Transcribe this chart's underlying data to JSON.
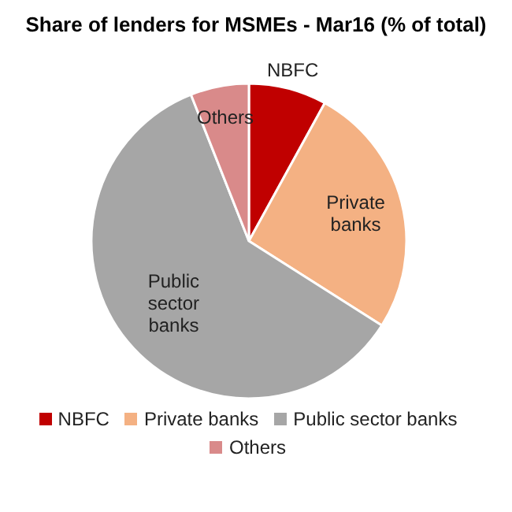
{
  "chart_data": {
    "type": "pie",
    "title": "Share of lenders for MSMEs - Mar16 (% of total)",
    "categories": [
      "NBFC",
      "Private banks",
      "Public sector banks",
      "Others"
    ],
    "values": [
      8,
      26,
      60,
      6
    ],
    "colors": [
      "#c00000",
      "#f4b183",
      "#a6a6a6",
      "#d98a8a"
    ],
    "legend": "bottom"
  }
}
